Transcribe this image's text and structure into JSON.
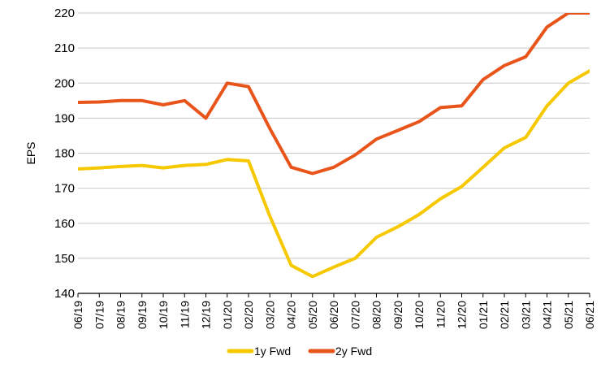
{
  "chart_data": {
    "type": "line",
    "title": "",
    "xlabel": "",
    "ylabel": "EPS",
    "ylim": [
      140,
      220
    ],
    "yticks": [
      140,
      150,
      160,
      170,
      180,
      190,
      200,
      210,
      220
    ],
    "grid": "horizontal",
    "legend_position": "bottom",
    "x_tick_labels": [
      "06/19",
      "07/19",
      "08/19",
      "09/19",
      "10/19",
      "11/19",
      "12/19",
      "01/20",
      "02/20",
      "03/20",
      "04/20",
      "05/20",
      "06/20",
      "07/20",
      "08/20",
      "09/20",
      "10/20",
      "11/20",
      "12/20",
      "01/21",
      "02/21",
      "03/21",
      "04/21",
      "05/21",
      "06/21"
    ],
    "x": [
      "06/19",
      "07/19",
      "08/19",
      "09/19",
      "10/19",
      "11/19",
      "12/19",
      "01/20",
      "02/20",
      "03/20",
      "04/20",
      "05/20",
      "06/20",
      "07/20",
      "08/20",
      "09/20",
      "10/20",
      "11/20",
      "12/20",
      "01/21",
      "02/21",
      "03/21",
      "04/21",
      "05/21",
      "06/21"
    ],
    "series": [
      {
        "name": "1y Fwd",
        "color": "#F5C800",
        "values": [
          175.5,
          175.8,
          176.2,
          176.5,
          175.8,
          176.5,
          176.8,
          178.2,
          177.8,
          162.0,
          148.0,
          144.8,
          147.5,
          150.0,
          156.0,
          159.0,
          162.5,
          167.0,
          170.5,
          176.0,
          181.5,
          184.5,
          193.5,
          200.0,
          203.5
        ]
      },
      {
        "name": "2y Fwd",
        "color": "#E8541A",
        "values": [
          194.5,
          194.6,
          195.0,
          195.0,
          193.8,
          195.0,
          190.0,
          200.0,
          199.0,
          187.0,
          176.0,
          174.2,
          176.0,
          179.5,
          184.0,
          186.5,
          189.0,
          193.0,
          193.5,
          201.0,
          205.0,
          207.5,
          216.0,
          220.0,
          220.0
        ]
      }
    ]
  }
}
